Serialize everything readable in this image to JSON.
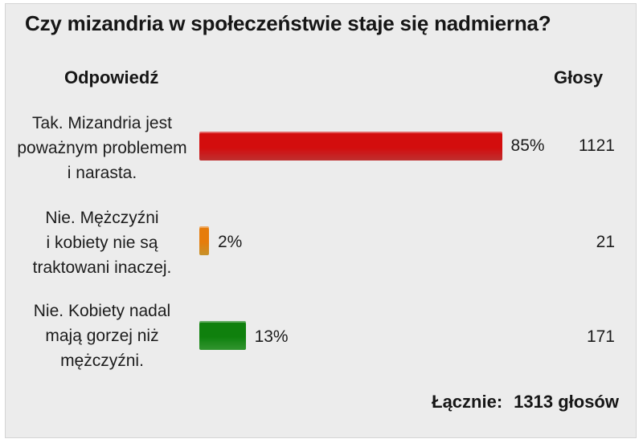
{
  "title": "Czy mizandria w społeczeństwie staje się nadmierna?",
  "headers": {
    "answer": "Odpowiedź",
    "votes": "Głosy"
  },
  "answers": [
    {
      "lines": [
        "Tak. Mizandria jest",
        "poważnym problemem",
        "i narasta."
      ],
      "percent_label": "85%",
      "votes": "1121",
      "share": 0.85,
      "color": "#e8393a"
    },
    {
      "lines": [
        "Nie. Mężczyźni",
        "i kobiety nie są",
        "traktowani inaczej."
      ],
      "percent_label": "2%",
      "votes": "21",
      "share": 0.02,
      "color": "#f2b234"
    },
    {
      "lines": [
        "Nie. Kobiety nadal",
        "mają gorzej niż",
        "mężczyźni."
      ],
      "percent_label": "13%",
      "votes": "171",
      "share": 0.13,
      "color": "#3db53a"
    }
  ],
  "total": {
    "label": "Łącznie:",
    "value": "1313 głosów"
  },
  "chart_data": {
    "type": "bar",
    "title": "Czy mizandria w społeczeństwie staje się nadmierna?",
    "categories": [
      "Tak. Mizandria jest poważnym problemem i narasta.",
      "Nie. Mężczyźni i kobiety nie są traktowani inaczej.",
      "Nie. Kobiety nadal mają gorzej niż mężczyźni."
    ],
    "series": [
      {
        "name": "",
        "values": [
          85,
          2,
          13
        ]
      }
    ],
    "votes": [
      1121,
      21,
      171
    ],
    "total_votes": 1313,
    "orientation": "horizontal",
    "xlim": [
      0,
      100
    ],
    "grid": false
  }
}
